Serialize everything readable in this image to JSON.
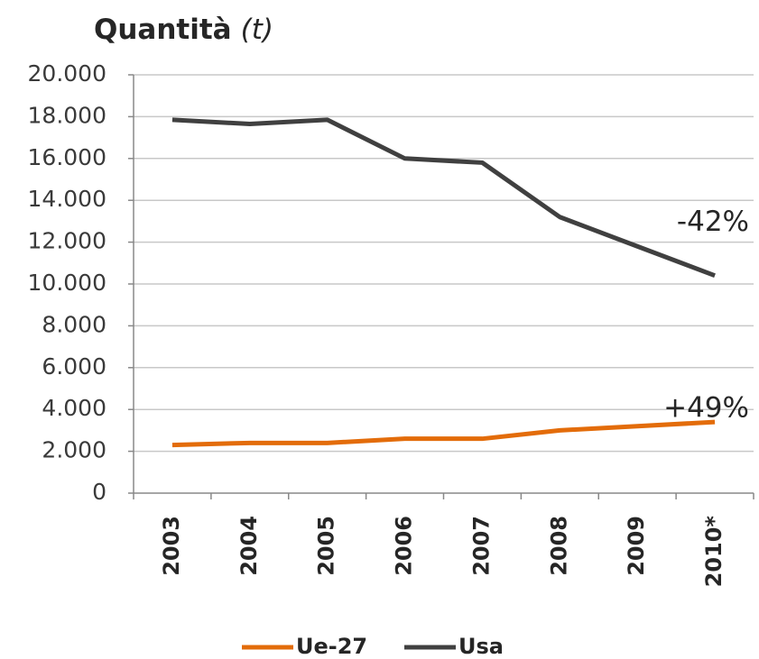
{
  "chart_data": {
    "type": "line",
    "title": "Quantità",
    "title_unit": "(t)",
    "categories": [
      "2003",
      "2004",
      "2005",
      "2006",
      "2007",
      "2008",
      "2009",
      "2010*"
    ],
    "series": [
      {
        "name": "Ue-27",
        "color": "#e36c0a",
        "values": [
          2300,
          2400,
          2400,
          2600,
          2600,
          3000,
          3200,
          3400
        ]
      },
      {
        "name": "Usa",
        "color": "#404040",
        "values": [
          17850,
          17650,
          17850,
          16000,
          15800,
          13200,
          11800,
          10400
        ]
      }
    ],
    "annotations": [
      {
        "text": "-42%",
        "series": 1
      },
      {
        "text": "+49%",
        "series": 0
      }
    ],
    "ylim": [
      0,
      20000
    ],
    "yticks": [
      0,
      {
        "value": 2000,
        "label": "2.000"
      },
      {
        "value": 4000,
        "label": "4.000"
      },
      {
        "value": 6000,
        "label": "6.000"
      },
      {
        "value": 8000,
        "label": "8.000"
      },
      {
        "value": 10000,
        "label": "10.000"
      },
      {
        "value": 12000,
        "label": "12.000"
      },
      {
        "value": 14000,
        "label": "14.000"
      },
      {
        "value": 16000,
        "label": "16.000"
      },
      {
        "value": 18000,
        "label": "18.000"
      },
      {
        "value": 20000,
        "label": "20.000"
      }
    ],
    "grid": true,
    "legend": "bottom"
  }
}
